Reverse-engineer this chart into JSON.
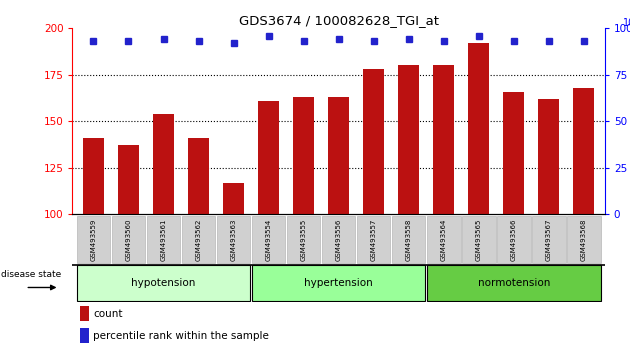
{
  "title": "GDS3674 / 100082628_TGI_at",
  "categories": [
    "GSM493559",
    "GSM493560",
    "GSM493561",
    "GSM493562",
    "GSM493563",
    "GSM493554",
    "GSM493555",
    "GSM493556",
    "GSM493557",
    "GSM493558",
    "GSM493564",
    "GSM493565",
    "GSM493566",
    "GSM493567",
    "GSM493568"
  ],
  "bar_values": [
    141,
    137,
    154,
    141,
    117,
    161,
    163,
    163,
    178,
    180,
    180,
    192,
    166,
    162,
    168
  ],
  "percentile_values": [
    93,
    93,
    94,
    93,
    92,
    96,
    93,
    94,
    93,
    94,
    93,
    96,
    93,
    93,
    93
  ],
  "ylim_left": [
    100,
    200
  ],
  "ylim_right": [
    0,
    100
  ],
  "yticks_left": [
    100,
    125,
    150,
    175,
    200
  ],
  "yticks_right": [
    0,
    25,
    50,
    75,
    100
  ],
  "bar_color": "#bb1111",
  "dot_color": "#2222cc",
  "background_color": "#ffffff",
  "legend_count_label": "count",
  "legend_pct_label": "percentile rank within the sample",
  "disease_state_label": "disease state",
  "group_labels": [
    "hypotension",
    "hypertension",
    "normotension"
  ],
  "group_colors": [
    "#ccffcc",
    "#99ff99",
    "#66cc44"
  ],
  "group_starts": [
    0,
    5,
    10
  ],
  "group_ends": [
    4,
    9,
    14
  ]
}
